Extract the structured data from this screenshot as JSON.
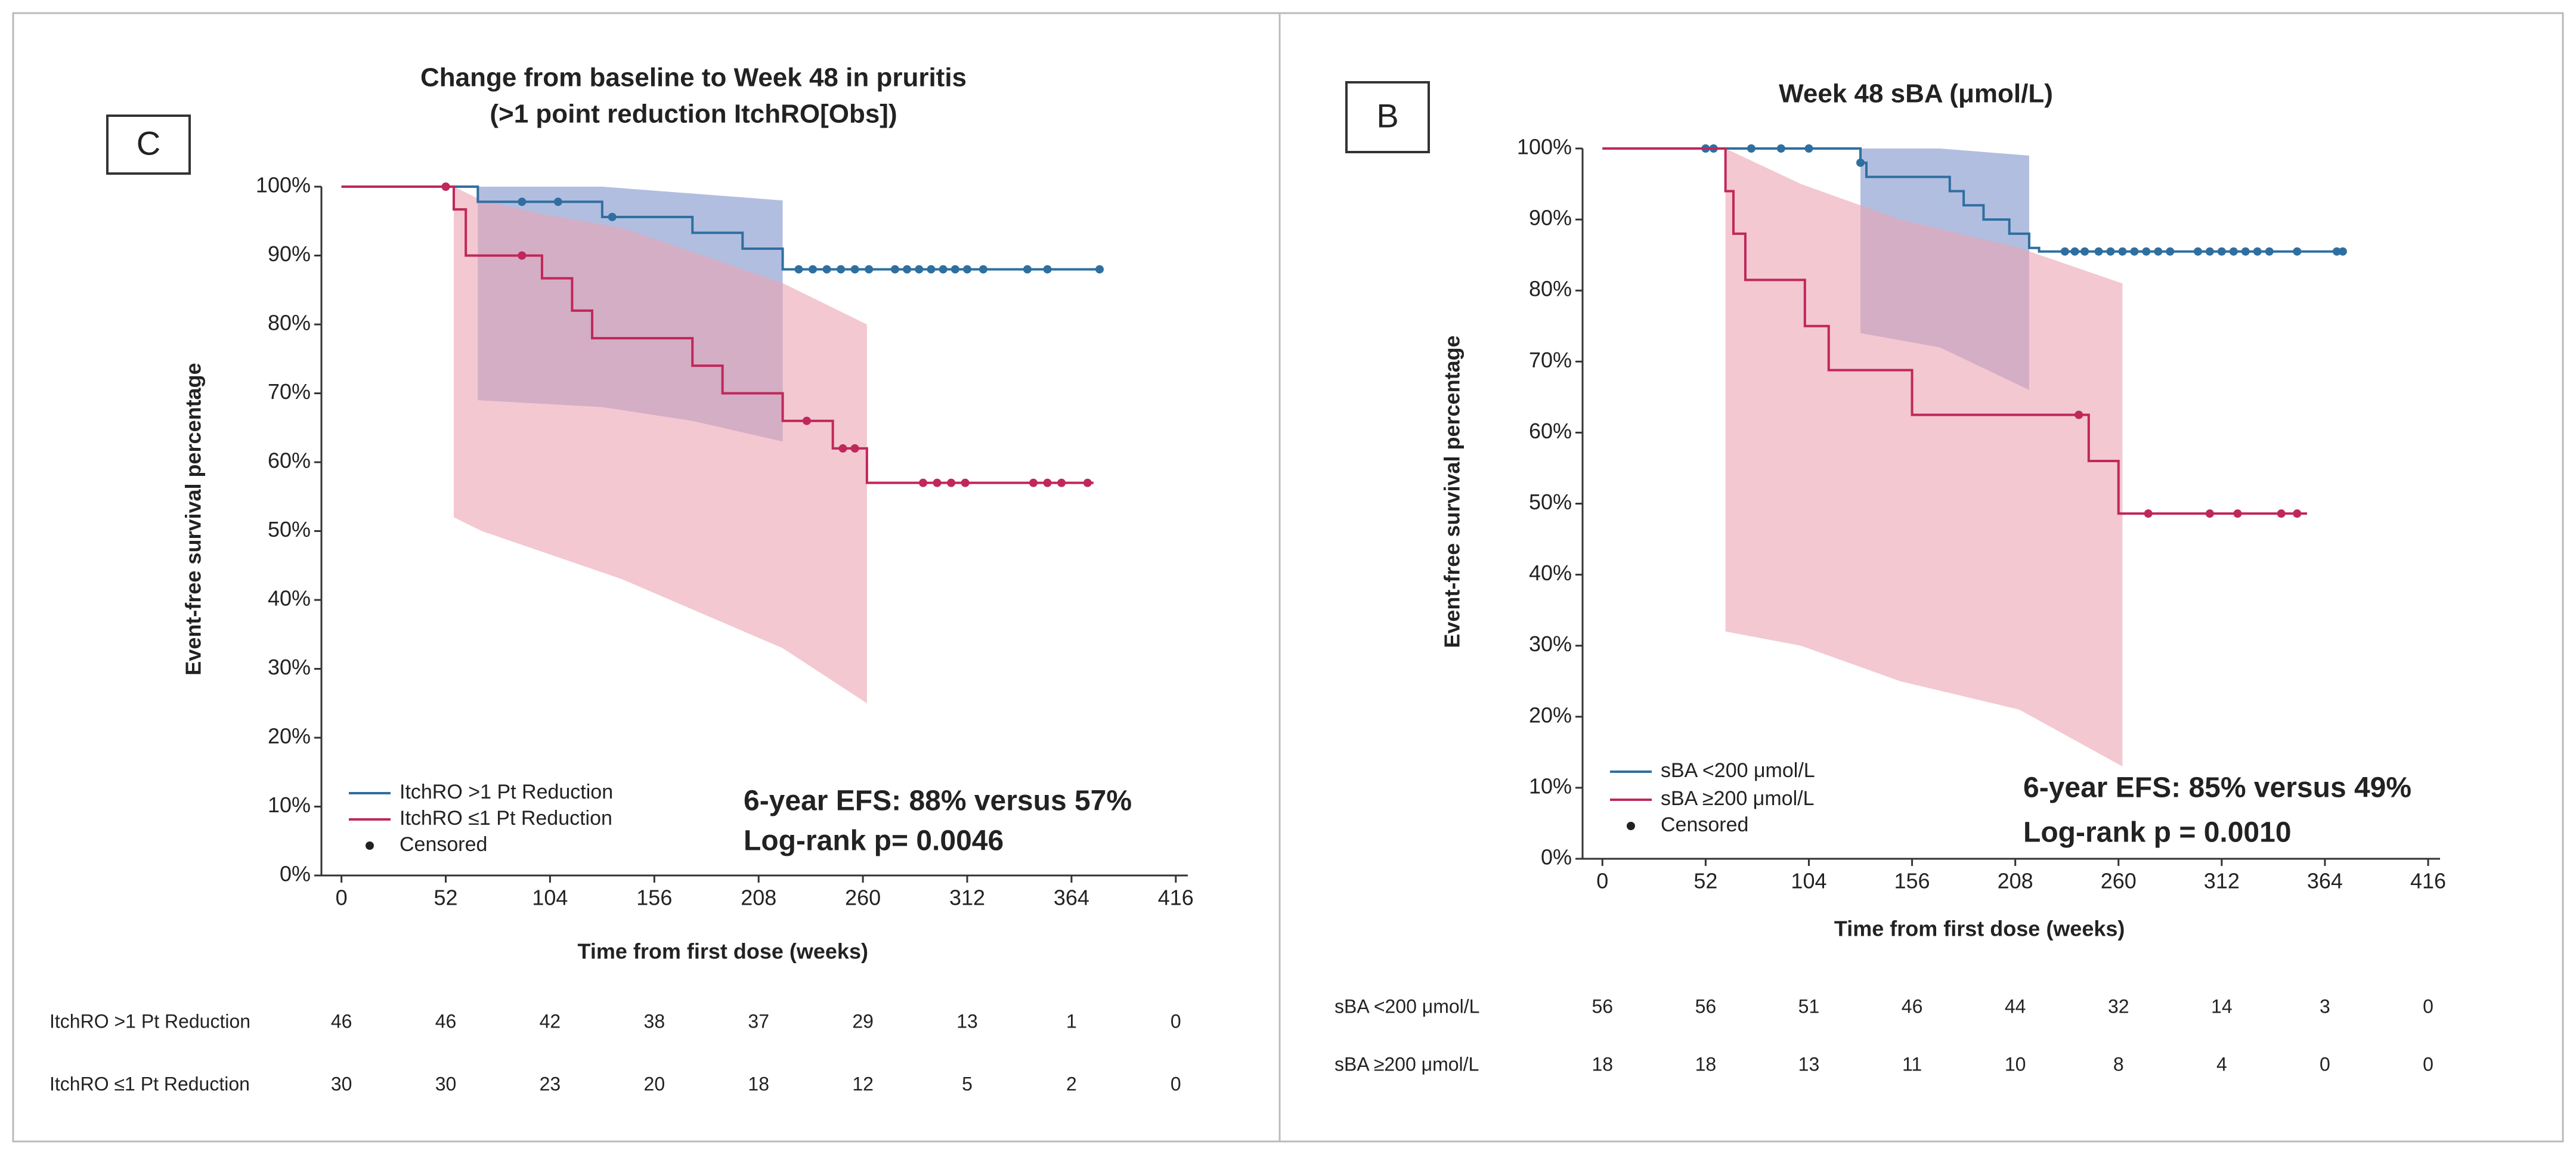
{
  "chart_data": [
    {
      "type": "line",
      "panel_label": "C",
      "title": "Change from baseline to Week 48 in pruritis",
      "subtitle": "(>1 point reduction ItchRO[Obs])",
      "x_label": "Time from first dose (weeks)",
      "y_label": "Event-free survival percentage",
      "xlim": [
        -10,
        422
      ],
      "ylim": [
        0,
        100
      ],
      "xticks": [
        0,
        52,
        104,
        156,
        208,
        260,
        312,
        364,
        416
      ],
      "yticks": [
        {
          "value": 0,
          "label": "0%"
        },
        {
          "value": 10,
          "label": "10%"
        },
        {
          "value": 20,
          "label": "20%"
        },
        {
          "value": 30,
          "label": "30%"
        },
        {
          "value": 40,
          "label": "40%"
        },
        {
          "value": 50,
          "label": "50%"
        },
        {
          "value": 60,
          "label": "60%"
        },
        {
          "value": 70,
          "label": "70%"
        },
        {
          "value": 80,
          "label": "80%"
        },
        {
          "value": 90,
          "label": "90%"
        },
        {
          "value": 100,
          "label": "100%"
        }
      ],
      "grid": false,
      "series": [
        {
          "name": "ItchRO >1 Pt Reduction",
          "color": "#2f6fa0",
          "band_color": "#7f93cc",
          "x": [
            0,
            68,
            130,
            175,
            200,
            220,
            380
          ],
          "values": [
            100,
            97.8,
            95.6,
            93.3,
            91,
            88,
            88
          ],
          "band_x": [
            68,
            130,
            175,
            220
          ],
          "band_upper": [
            100,
            100,
            99,
            98
          ],
          "band_lower": [
            69,
            68,
            66,
            63
          ],
          "censored_x": [
            52,
            90,
            108,
            135,
            228,
            235,
            242,
            249,
            256,
            263,
            276,
            282,
            288,
            294,
            300,
            306,
            312,
            320,
            342,
            352,
            378
          ],
          "censored_values": [
            100,
            97.8,
            97.8,
            95.6,
            88,
            88,
            88,
            88,
            88,
            88,
            88,
            88,
            88,
            88,
            88,
            88,
            88,
            88,
            88,
            88,
            88
          ],
          "risk": [
            46,
            46,
            42,
            38,
            37,
            29,
            13,
            1,
            0
          ]
        },
        {
          "name": "ItchRO ≤1 Pt Reduction",
          "color": "#c0275a",
          "band_color": "#eba3b3",
          "x": [
            0,
            56,
            62,
            100,
            115,
            125,
            175,
            190,
            220,
            245,
            262,
            375
          ],
          "values": [
            100,
            96.7,
            90,
            86.7,
            82,
            78,
            74,
            70,
            66,
            62,
            57,
            57
          ],
          "band_x": [
            56,
            70,
            100,
            140,
            180,
            220,
            262
          ],
          "band_upper": [
            100,
            98,
            96,
            94,
            90,
            86,
            80
          ],
          "band_lower": [
            52,
            50,
            47,
            43,
            38,
            33,
            25
          ],
          "censored_x": [
            52,
            90,
            232,
            250,
            256,
            290,
            297,
            304,
            311,
            345,
            352,
            359,
            372
          ],
          "censored_values": [
            100,
            90,
            66,
            62,
            62,
            57,
            57,
            57,
            57,
            57,
            57,
            57,
            57
          ],
          "risk": [
            30,
            30,
            23,
            20,
            18,
            12,
            5,
            2,
            0
          ]
        }
      ],
      "censored_label": "Censored",
      "annotations": [
        "6-year EFS: 88% versus 57%",
        "Log-rank p= 0.0046"
      ]
    },
    {
      "type": "line",
      "panel_label": "B",
      "title": "Week 48 sBA (μmol/L)",
      "x_label": "Time from first dose (weeks)",
      "y_label": "Event-free survival percentage",
      "xlim": [
        -10,
        422
      ],
      "ylim": [
        0,
        100
      ],
      "xticks": [
        0,
        52,
        104,
        156,
        208,
        260,
        312,
        364,
        416
      ],
      "yticks": [
        {
          "value": 0,
          "label": "0%"
        },
        {
          "value": 10,
          "label": "10%"
        },
        {
          "value": 20,
          "label": "20%"
        },
        {
          "value": 30,
          "label": "30%"
        },
        {
          "value": 40,
          "label": "40%"
        },
        {
          "value": 50,
          "label": "50%"
        },
        {
          "value": 60,
          "label": "60%"
        },
        {
          "value": 70,
          "label": "70%"
        },
        {
          "value": 80,
          "label": "80%"
        },
        {
          "value": 90,
          "label": "90%"
        },
        {
          "value": 100,
          "label": "100%"
        }
      ],
      "grid": false,
      "series": [
        {
          "name": "sBA <200 μmol/L",
          "color": "#2f6fa0",
          "band_color": "#7f93cc",
          "x": [
            0,
            130,
            133,
            175,
            182,
            192,
            205,
            215,
            220,
            375
          ],
          "values": [
            100,
            98,
            96,
            94,
            92,
            90,
            88,
            86,
            85.5,
            85.5
          ],
          "band_x": [
            130,
            170,
            215
          ],
          "band_upper": [
            100,
            100,
            99
          ],
          "band_lower": [
            74,
            72,
            66
          ],
          "censored_x": [
            52,
            56,
            75,
            90,
            104,
            130,
            233,
            238,
            243,
            250,
            256,
            262,
            268,
            274,
            280,
            286,
            300,
            306,
            312,
            318,
            324,
            330,
            336,
            350,
            370,
            373
          ],
          "censored_values": [
            100,
            100,
            100,
            100,
            100,
            98,
            85.5,
            85.5,
            85.5,
            85.5,
            85.5,
            85.5,
            85.5,
            85.5,
            85.5,
            85.5,
            85.5,
            85.5,
            85.5,
            85.5,
            85.5,
            85.5,
            85.5,
            85.5,
            85.5,
            85.5
          ],
          "risk": [
            56,
            56,
            51,
            46,
            44,
            32,
            14,
            3,
            0
          ]
        },
        {
          "name": "sBA ≥200 μmol/L",
          "color": "#c0275a",
          "band_color": "#eba3b3",
          "x": [
            0,
            62,
            66,
            72,
            102,
            114,
            156,
            245,
            260,
            355
          ],
          "values": [
            100,
            94,
            88,
            81.5,
            75,
            68.8,
            62.5,
            56,
            48.6,
            48.6
          ],
          "band_x": [
            62,
            100,
            150,
            210,
            262
          ],
          "band_upper": [
            100,
            95,
            90,
            86,
            81
          ],
          "band_lower": [
            32,
            30,
            25,
            21,
            13
          ],
          "censored_x": [
            240,
            275,
            306,
            320,
            342,
            350
          ],
          "censored_values": [
            62.5,
            48.6,
            48.6,
            48.6,
            48.6,
            48.6
          ],
          "risk": [
            18,
            18,
            13,
            11,
            10,
            8,
            4,
            0,
            0
          ]
        }
      ],
      "censored_label": "Censored",
      "annotations": [
        "6-year EFS: 85% versus 49%",
        "Log-rank p = 0.0010"
      ]
    }
  ]
}
